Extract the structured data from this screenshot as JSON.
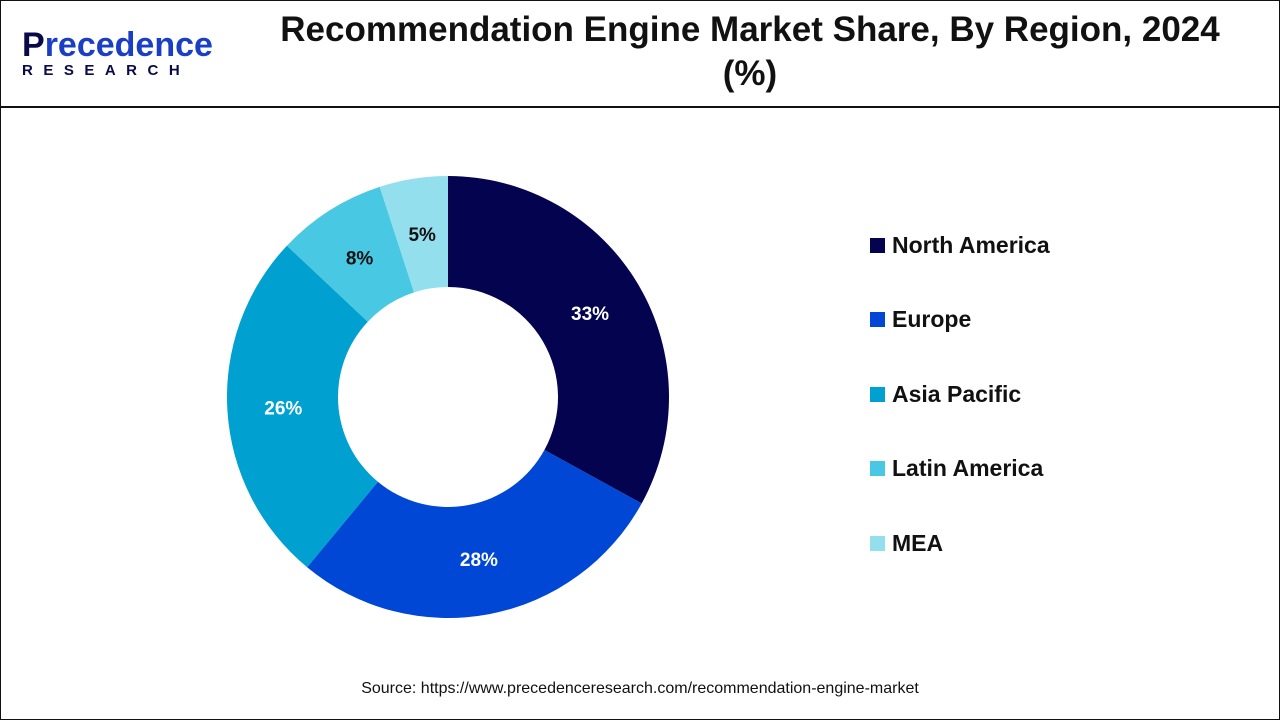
{
  "logo": {
    "top": "Precedence",
    "bottom": "RESEARCH"
  },
  "title": "Recommendation Engine Market Share, By Region, 2024 (%)",
  "source": "Source: https://www.precedenceresearch.com/recommendation-engine-market",
  "chart_data": {
    "type": "pie",
    "variant": "donut",
    "title": "Recommendation Engine Market Share, By Region, 2024 (%)",
    "categories": [
      "North America",
      "Europe",
      "Asia Pacific",
      "Latin America",
      "MEA"
    ],
    "values": [
      33,
      28,
      26,
      8,
      5
    ],
    "labels": [
      "33%",
      "28%",
      "26%",
      "8%",
      "5%"
    ],
    "colors": [
      "#03034f",
      "#0047d6",
      "#00a0d1",
      "#48c8e2",
      "#94dfee"
    ],
    "label_colors": [
      "#ffffff",
      "#ffffff",
      "#ffffff",
      "#111111",
      "#111111"
    ],
    "legend_position": "right",
    "start": "top, clockwise"
  }
}
